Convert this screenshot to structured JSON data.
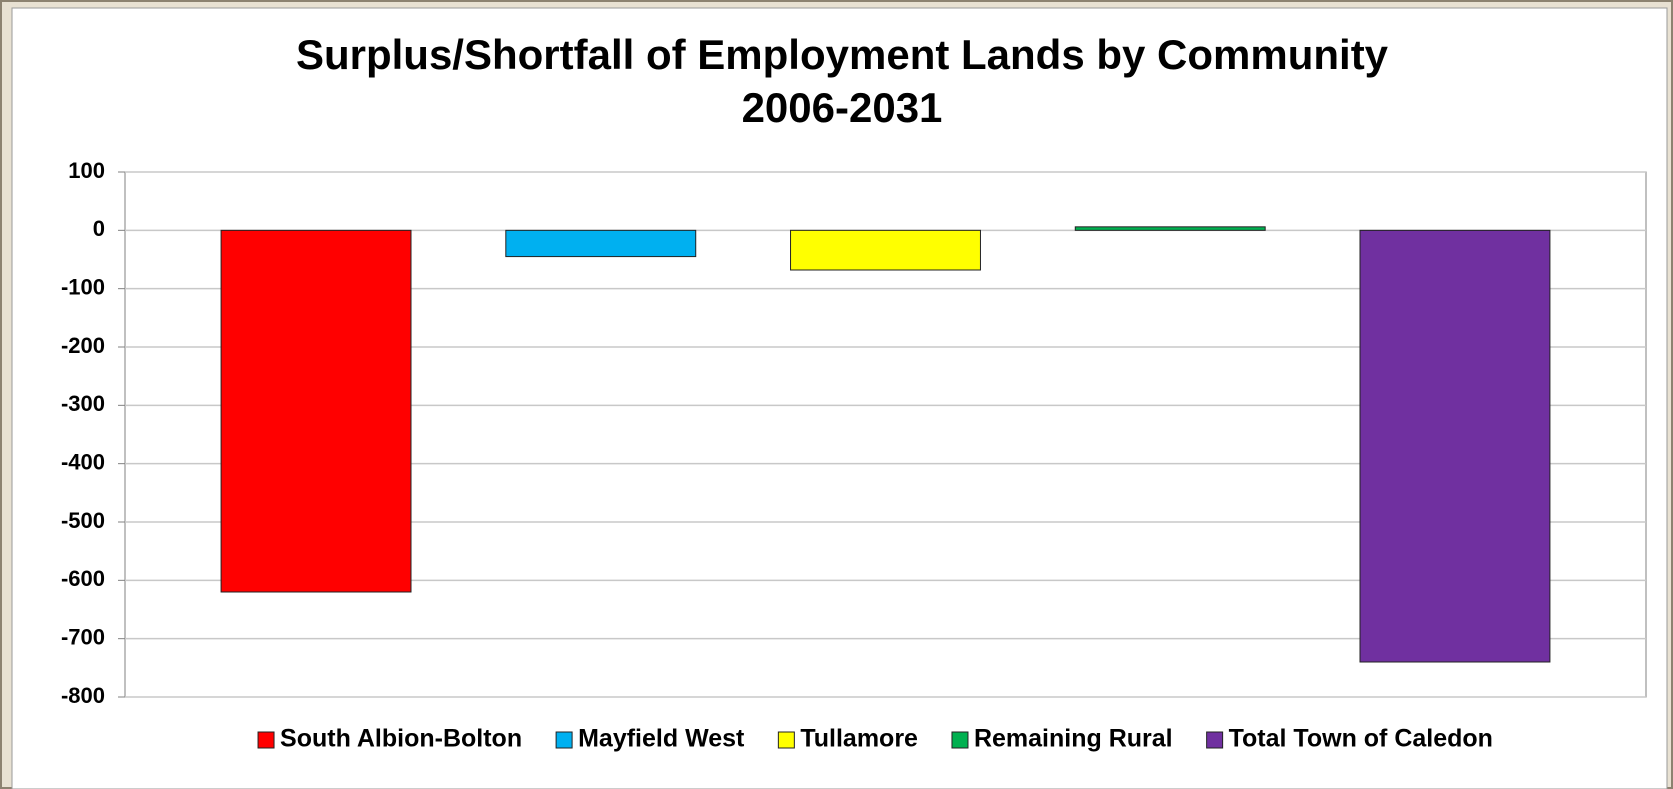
{
  "chart_data": {
    "type": "bar",
    "title": "Surplus/Shortfall of Employment Lands by Community",
    "subtitle": "2006-2031",
    "series": [
      {
        "name": "South Albion-Bolton",
        "color": "#ff0000",
        "values": [
          -620
        ]
      },
      {
        "name": "Mayfield West",
        "color": "#00b0f0",
        "values": [
          -45
        ]
      },
      {
        "name": "Tullamore",
        "color": "#ffff00",
        "values": [
          -68
        ]
      },
      {
        "name": "Remaining Rural",
        "color": "#00b050",
        "values": [
          6
        ]
      },
      {
        "name": "Total Town of Caledon",
        "color": "#7030a0",
        "values": [
          -740
        ]
      }
    ],
    "ylim": [
      -800,
      100
    ],
    "yticks": [
      -800,
      -700,
      -600,
      -500,
      -400,
      -300,
      -200,
      -100,
      0,
      100
    ],
    "grid": true,
    "legend": "bottom"
  }
}
